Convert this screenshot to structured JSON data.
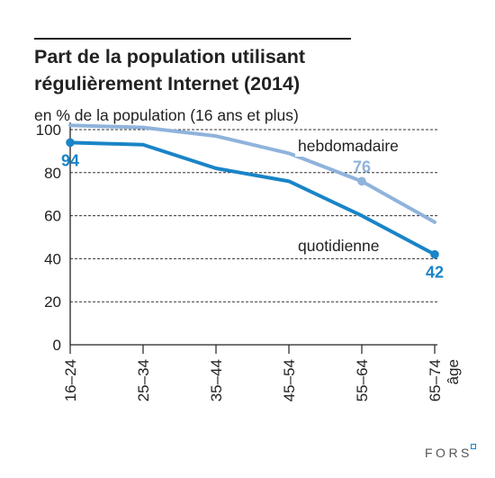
{
  "chart_data": {
    "type": "line",
    "title_lines": [
      "Part de la population utilisant",
      "régulièrement Internet (2014)"
    ],
    "subtitle": "en % de la population (16 ans et plus)",
    "xlabel": "âge",
    "categories": [
      "16–24",
      "25–34",
      "35–44",
      "45–54",
      "55–64",
      "65–74"
    ],
    "ylim": [
      0,
      100
    ],
    "yticks": [
      0,
      20,
      40,
      60,
      80,
      100
    ],
    "grid": true,
    "series": [
      {
        "name": "hebdomadaire",
        "color": "#8fb3dc",
        "values": [
          102,
          101,
          97,
          89,
          76,
          57
        ],
        "labeled_points": [
          {
            "index": 4,
            "label": "76"
          }
        ]
      },
      {
        "name": "quotidienne",
        "color": "#1a84c7",
        "values": [
          94,
          93,
          82,
          76,
          60,
          42
        ],
        "labeled_points": [
          {
            "index": 0,
            "label": "94"
          },
          {
            "index": 5,
            "label": "42"
          }
        ]
      }
    ]
  },
  "logo": {
    "text": "FORS",
    "accent_color": "#1a84c7"
  }
}
